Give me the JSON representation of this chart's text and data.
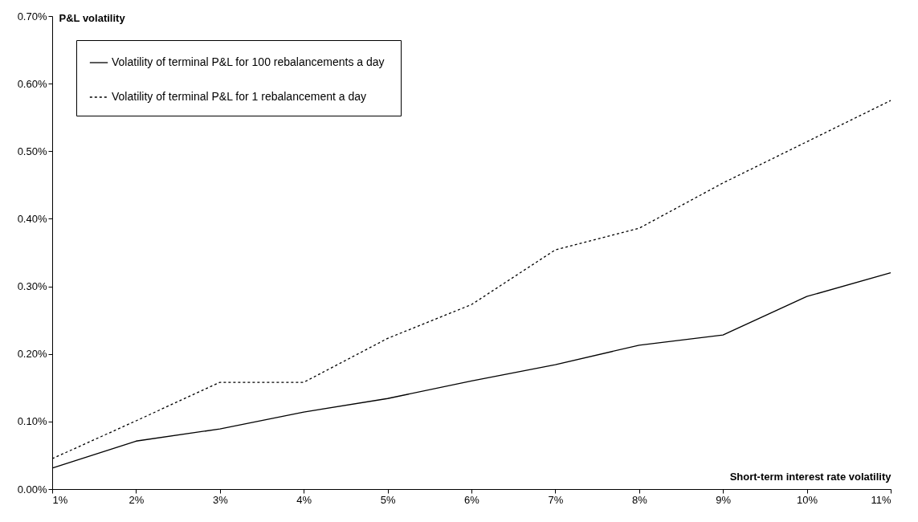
{
  "chart_data": {
    "type": "line",
    "xlabel": "Short-term interest rate volatility",
    "ylabel": "P&L volatility",
    "categories": [
      "1%",
      "2%",
      "3%",
      "4%",
      "5%",
      "6%",
      "7%",
      "8%",
      "9%",
      "10%",
      "11%"
    ],
    "ylim": [
      0,
      0.7
    ],
    "yticks": [
      {
        "value": 0,
        "label": "0.00%"
      },
      {
        "value": 0.1,
        "label": "0.10%"
      },
      {
        "value": 0.2,
        "label": "0.20%"
      },
      {
        "value": 0.3,
        "label": "0.30%"
      },
      {
        "value": 0.4,
        "label": "0.40%"
      },
      {
        "value": 0.5,
        "label": "0.50%"
      },
      {
        "value": 0.6,
        "label": "0.60%"
      },
      {
        "value": 0.7,
        "label": "0.70%"
      }
    ],
    "series": [
      {
        "name": "Volatility of  terminal P&L for 100 rebalancements a day",
        "color": "#000000",
        "line_style": "solid",
        "values": [
          0.031,
          0.071,
          0.089,
          0.114,
          0.134,
          0.16,
          0.184,
          0.213,
          0.228,
          0.285,
          0.32
        ]
      },
      {
        "name": "Volatility of terminal P&L for 1 rebalancement a day",
        "color": "#000000",
        "line_style": "dotted",
        "values": [
          0.045,
          0.101,
          0.158,
          0.158,
          0.223,
          0.273,
          0.354,
          0.386,
          0.453,
          0.514,
          0.575
        ]
      }
    ],
    "grid": false,
    "legend": "top left",
    "marker": "none"
  }
}
